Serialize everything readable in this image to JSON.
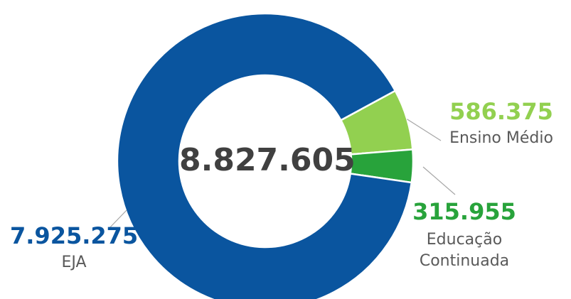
{
  "chart_data": {
    "type": "pie",
    "style": "donut",
    "total_label": "8.827.605",
    "series": [
      {
        "category": "EJA",
        "value": 7925275,
        "value_label": "7.925.275",
        "color": "#0A559F"
      },
      {
        "category": "Ensino Médio",
        "value": 586375,
        "value_label": "586.375",
        "color": "#92D050"
      },
      {
        "category": "Educação Continuada",
        "category_lines": [
          "Educação",
          "Continuada"
        ],
        "value": 315955,
        "value_label": "315.955",
        "color": "#28A33B"
      }
    ]
  }
}
